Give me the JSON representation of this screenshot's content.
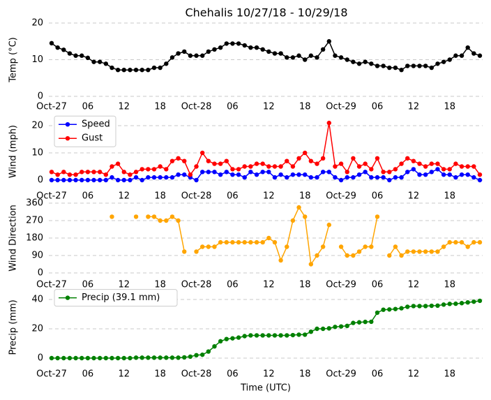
{
  "chart_data": [
    {
      "type": "line",
      "title": "Chehalis 10/27/18 - 10/29/18",
      "ylabel": "Temp (°C)",
      "x": [
        0,
        1,
        2,
        3,
        4,
        5,
        6,
        7,
        8,
        9,
        10,
        11,
        12,
        13,
        14,
        15,
        16,
        17,
        18,
        19,
        20,
        21,
        22,
        23,
        24,
        25,
        26,
        27,
        28,
        29,
        30,
        31,
        32,
        33,
        34,
        35,
        36,
        37,
        38,
        39,
        40,
        41,
        42,
        43,
        44,
        45,
        46,
        47,
        48,
        49,
        50,
        51,
        52,
        53,
        54,
        55,
        56,
        57,
        58,
        59,
        60,
        61,
        62,
        63,
        64,
        65,
        66,
        67,
        68,
        69,
        70,
        71
      ],
      "series": [
        {
          "name": "Temp",
          "color": "#000000",
          "values": [
            14.5,
            13.3,
            12.7,
            11.7,
            11.1,
            11.1,
            10.5,
            9.4,
            9.4,
            8.9,
            7.8,
            7.2,
            7.2,
            7.2,
            7.2,
            7.2,
            7.2,
            7.8,
            7.8,
            8.9,
            10.6,
            11.7,
            12.2,
            11.1,
            11.1,
            11.1,
            12.2,
            12.8,
            13.3,
            14.4,
            14.4,
            14.4,
            13.9,
            13.3,
            13.3,
            12.8,
            12.2,
            11.7,
            11.7,
            10.6,
            10.6,
            11.1,
            10.0,
            11.1,
            10.6,
            12.8,
            15.0,
            11.1,
            10.6,
            10.0,
            9.4,
            8.9,
            9.4,
            8.9,
            8.3,
            8.3,
            7.8,
            7.8,
            7.2,
            8.3,
            8.3,
            8.3,
            8.3,
            7.8,
            8.9,
            9.4,
            10.0,
            11.1,
            11.1,
            13.3,
            11.7,
            11.1
          ]
        }
      ],
      "xlim": [
        0,
        71
      ],
      "xticks": [
        {
          "value": 0,
          "label": "Oct-27"
        },
        {
          "value": 6,
          "label": "06"
        },
        {
          "value": 12,
          "label": "12"
        },
        {
          "value": 18,
          "label": "18"
        },
        {
          "value": 24,
          "label": "Oct-28"
        },
        {
          "value": 30,
          "label": "06"
        },
        {
          "value": 36,
          "label": "12"
        },
        {
          "value": 42,
          "label": "18"
        },
        {
          "value": 48,
          "label": "Oct-29"
        },
        {
          "value": 54,
          "label": "06"
        },
        {
          "value": 60,
          "label": "12"
        },
        {
          "value": 66,
          "label": "18"
        }
      ],
      "ylim": [
        0,
        20
      ],
      "yticks": [
        0,
        10,
        20
      ],
      "grid": true,
      "legend": false
    },
    {
      "type": "line",
      "ylabel": "Wind (mph)",
      "x": [
        0,
        1,
        2,
        3,
        4,
        5,
        6,
        7,
        8,
        9,
        10,
        11,
        12,
        13,
        14,
        15,
        16,
        17,
        18,
        19,
        20,
        21,
        22,
        23,
        24,
        25,
        26,
        27,
        28,
        29,
        30,
        31,
        32,
        33,
        34,
        35,
        36,
        37,
        38,
        39,
        40,
        41,
        42,
        43,
        44,
        45,
        46,
        47,
        48,
        49,
        50,
        51,
        52,
        53,
        54,
        55,
        56,
        57,
        58,
        59,
        60,
        61,
        62,
        63,
        64,
        65,
        66,
        67,
        68,
        69,
        70,
        71
      ],
      "series": [
        {
          "name": "Speed",
          "color": "#0000ff",
          "values": [
            0,
            0,
            0,
            0,
            0,
            0,
            0,
            0,
            0,
            0,
            1,
            0,
            0,
            0,
            1,
            0,
            1,
            1,
            1,
            1,
            1,
            2,
            2,
            1,
            0,
            3,
            3,
            3,
            2,
            3,
            2,
            2,
            1,
            3,
            2,
            3,
            3,
            1,
            2,
            1,
            2,
            2,
            2,
            1,
            1,
            3,
            3,
            1,
            0,
            1,
            1,
            2,
            3,
            1,
            1,
            1,
            0,
            1,
            1,
            3,
            4,
            2,
            2,
            3,
            4,
            2,
            2,
            1,
            2,
            2,
            1,
            0
          ]
        },
        {
          "name": "Gust",
          "color": "#ff0000",
          "values": [
            3,
            2,
            3,
            2,
            2,
            3,
            3,
            3,
            3,
            2,
            5,
            6,
            3,
            2,
            3,
            4,
            4,
            4,
            5,
            4,
            7,
            8,
            7,
            2,
            5,
            10,
            7,
            6,
            6,
            7,
            4,
            4,
            5,
            5,
            6,
            6,
            5,
            5,
            5,
            7,
            5,
            8,
            10,
            7,
            6,
            8,
            21,
            5,
            6,
            3,
            8,
            5,
            6,
            4,
            8,
            3,
            3,
            4,
            6,
            8,
            7,
            6,
            5,
            6,
            6,
            4,
            4,
            6,
            5,
            5,
            5,
            2
          ]
        }
      ],
      "xlim": [
        0,
        71
      ],
      "xticks": [
        {
          "value": 0,
          "label": "Oct-27"
        },
        {
          "value": 6,
          "label": "06"
        },
        {
          "value": 12,
          "label": "12"
        },
        {
          "value": 18,
          "label": "18"
        },
        {
          "value": 24,
          "label": "Oct-28"
        },
        {
          "value": 30,
          "label": "06"
        },
        {
          "value": 36,
          "label": "12"
        },
        {
          "value": 42,
          "label": "18"
        },
        {
          "value": 48,
          "label": "Oct-29"
        },
        {
          "value": 54,
          "label": "06"
        },
        {
          "value": 60,
          "label": "12"
        },
        {
          "value": 66,
          "label": "18"
        }
      ],
      "ylim": [
        -1,
        22
      ],
      "yticks": [
        0,
        10,
        20
      ],
      "grid": true,
      "legend": "upper left"
    },
    {
      "type": "line",
      "ylabel": "Wind Direction",
      "x": [
        0,
        1,
        2,
        3,
        4,
        5,
        6,
        7,
        8,
        9,
        10,
        11,
        12,
        13,
        14,
        15,
        16,
        17,
        18,
        19,
        20,
        21,
        22,
        23,
        24,
        25,
        26,
        27,
        28,
        29,
        30,
        31,
        32,
        33,
        34,
        35,
        36,
        37,
        38,
        39,
        40,
        41,
        42,
        43,
        44,
        45,
        46,
        47,
        48,
        49,
        50,
        51,
        52,
        53,
        54,
        55,
        56,
        57,
        58,
        59,
        60,
        61,
        62,
        63,
        64,
        65,
        66,
        67,
        68,
        69,
        70,
        71
      ],
      "series": [
        {
          "name": "Direction",
          "color": "#ffa500",
          "values": [
            null,
            null,
            null,
            null,
            null,
            null,
            null,
            null,
            null,
            null,
            290,
            null,
            null,
            null,
            290,
            null,
            290,
            290,
            270,
            270,
            290,
            270,
            110,
            null,
            110,
            135,
            135,
            135,
            158,
            158,
            158,
            158,
            158,
            158,
            158,
            158,
            180,
            158,
            65,
            135,
            270,
            338,
            290,
            45,
            90,
            135,
            248,
            null,
            135,
            90,
            90,
            110,
            135,
            135,
            290,
            null,
            90,
            135,
            90,
            110,
            110,
            110,
            110,
            110,
            110,
            135,
            158,
            158,
            158,
            135,
            158,
            158
          ]
        }
      ],
      "xlim": [
        0,
        71
      ],
      "xticks": [
        {
          "value": 0,
          "label": "Oct-27"
        },
        {
          "value": 6,
          "label": "06"
        },
        {
          "value": 12,
          "label": "12"
        },
        {
          "value": 18,
          "label": "18"
        },
        {
          "value": 24,
          "label": "Oct-28"
        },
        {
          "value": 30,
          "label": "06"
        },
        {
          "value": 36,
          "label": "12"
        },
        {
          "value": 42,
          "label": "18"
        },
        {
          "value": 48,
          "label": "Oct-29"
        },
        {
          "value": 54,
          "label": "06"
        },
        {
          "value": 60,
          "label": "12"
        },
        {
          "value": 66,
          "label": "18"
        }
      ],
      "ylim": [
        0,
        360
      ],
      "yticks": [
        0,
        90,
        180,
        270,
        360
      ],
      "grid": true,
      "legend": false
    },
    {
      "type": "line",
      "ylabel": "Precip (mm)",
      "xlabel": "Time (UTC)",
      "x": [
        0,
        1,
        2,
        3,
        4,
        5,
        6,
        7,
        8,
        9,
        10,
        11,
        12,
        13,
        14,
        15,
        16,
        17,
        18,
        19,
        20,
        21,
        22,
        23,
        24,
        25,
        26,
        27,
        28,
        29,
        30,
        31,
        32,
        33,
        34,
        35,
        36,
        37,
        38,
        39,
        40,
        41,
        42,
        43,
        44,
        45,
        46,
        47,
        48,
        49,
        50,
        51,
        52,
        53,
        54,
        55,
        56,
        57,
        58,
        59,
        60,
        61,
        62,
        63,
        64,
        65,
        66,
        67,
        68,
        69,
        70,
        71
      ],
      "series": [
        {
          "name": "Precip (39.1 mm)",
          "color": "#008000",
          "values": [
            0,
            0,
            0,
            0,
            0,
            0,
            0,
            0,
            0,
            0,
            0,
            0,
            0,
            0,
            0.3,
            0.3,
            0.3,
            0.3,
            0.3,
            0.3,
            0.3,
            0.3,
            0.5,
            1,
            2,
            2.3,
            4.5,
            8,
            11.5,
            13,
            13.5,
            14,
            15,
            15.5,
            15.5,
            15.5,
            15.5,
            15.5,
            15.5,
            15.5,
            15.7,
            16,
            16,
            18,
            20,
            20,
            20.3,
            21.3,
            21.6,
            22,
            24,
            24.4,
            24.7,
            24.8,
            31,
            33,
            33.2,
            33.5,
            34,
            35,
            35.5,
            35.5,
            35.5,
            35.7,
            35.8,
            36.5,
            37,
            37.1,
            37.5,
            38,
            38.5,
            39.1
          ]
        }
      ],
      "xlim": [
        0,
        71
      ],
      "xticks": [
        {
          "value": 0,
          "label": "Oct-27"
        },
        {
          "value": 6,
          "label": "06"
        },
        {
          "value": 12,
          "label": "12"
        },
        {
          "value": 18,
          "label": "18"
        },
        {
          "value": 24,
          "label": "Oct-28"
        },
        {
          "value": 30,
          "label": "06"
        },
        {
          "value": 36,
          "label": "12"
        },
        {
          "value": 42,
          "label": "18"
        },
        {
          "value": 48,
          "label": "Oct-29"
        },
        {
          "value": 54,
          "label": "06"
        },
        {
          "value": 60,
          "label": "12"
        },
        {
          "value": 66,
          "label": "18"
        }
      ],
      "ylim": [
        -2,
        44
      ],
      "yticks": [
        0,
        20,
        40
      ],
      "grid": true,
      "legend": "upper left"
    }
  ]
}
